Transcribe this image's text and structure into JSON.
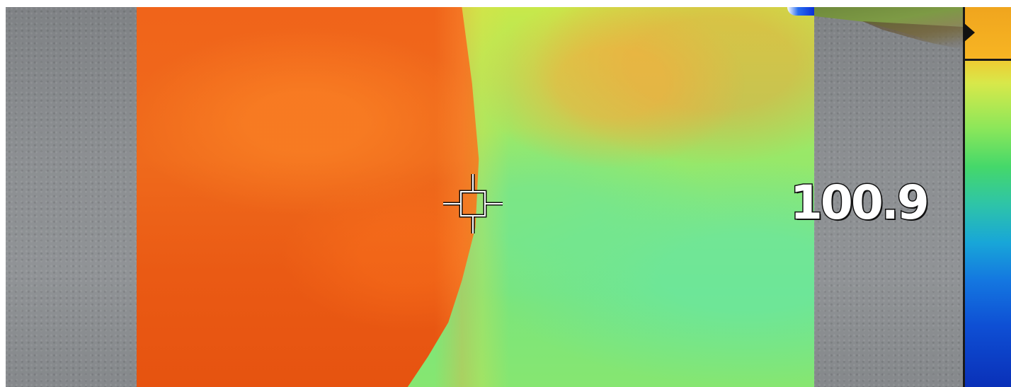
{
  "readout": {
    "temperature": "100.9"
  },
  "palette": {
    "hot": "#ec5e16",
    "warm": "#f2a020",
    "mid": "#8ee76f",
    "cool": "#18a6d8",
    "cold": "#0a30b8"
  },
  "icons": {
    "crosshair": "crosshair-icon",
    "scale_marker": "triangle-right-icon"
  }
}
